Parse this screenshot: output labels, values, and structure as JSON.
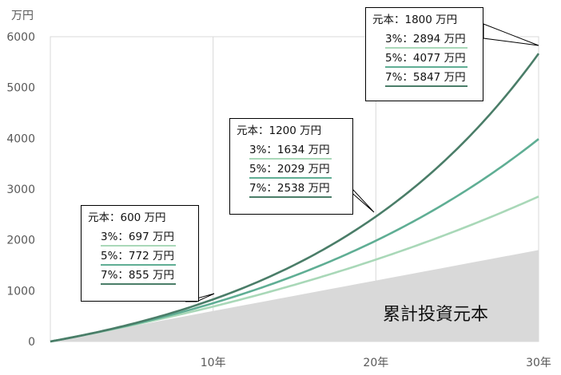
{
  "chart_data": {
    "type": "area",
    "y_unit": "万円",
    "ylim": [
      0,
      6000
    ],
    "yticks": [
      "0",
      "1000",
      "2000",
      "3000",
      "4000",
      "5000",
      "6000"
    ],
    "xlim": [
      0,
      30
    ],
    "xticks": [
      {
        "x": 10,
        "label": "10年"
      },
      {
        "x": 20,
        "label": "20年"
      },
      {
        "x": 30,
        "label": "30年"
      }
    ],
    "grid": true,
    "principal": {
      "name": "累計投資元本",
      "color": "#d9d9d9",
      "annual_contribution": 60
    },
    "series": [
      {
        "rate": 0.03,
        "color": "#a9d8b8",
        "values_at": {
          "10": 697,
          "20": 1634,
          "30": 2894
        }
      },
      {
        "rate": 0.05,
        "color": "#5fae94",
        "values_at": {
          "10": 772,
          "20": 2029,
          "30": 4077
        }
      },
      {
        "rate": 0.07,
        "color": "#4a7d68",
        "values_at": {
          "10": 855,
          "20": 2538,
          "30": 5847
        }
      }
    ],
    "callouts": [
      {
        "year": 10,
        "principal_label": "元本：600 万円",
        "rows": [
          {
            "label": "3%：697 万円",
            "color": "#a9d8b8"
          },
          {
            "label": "5%：772 万円",
            "color": "#5fae94"
          },
          {
            "label": "7%：855 万円",
            "color": "#4a7d68"
          }
        ]
      },
      {
        "year": 20,
        "principal_label": "元本：1200 万円",
        "rows": [
          {
            "label": "3%：1634 万円",
            "color": "#a9d8b8"
          },
          {
            "label": "5%：2029 万円",
            "color": "#5fae94"
          },
          {
            "label": "7%：2538 万円",
            "color": "#4a7d68"
          }
        ]
      },
      {
        "year": 30,
        "principal_label": "元本：1800 万円",
        "rows": [
          {
            "label": "3%：2894 万円",
            "color": "#a9d8b8"
          },
          {
            "label": "5%：4077 万円",
            "color": "#5fae94"
          },
          {
            "label": "7%：5847 万円",
            "color": "#4a7d68"
          }
        ]
      }
    ]
  }
}
